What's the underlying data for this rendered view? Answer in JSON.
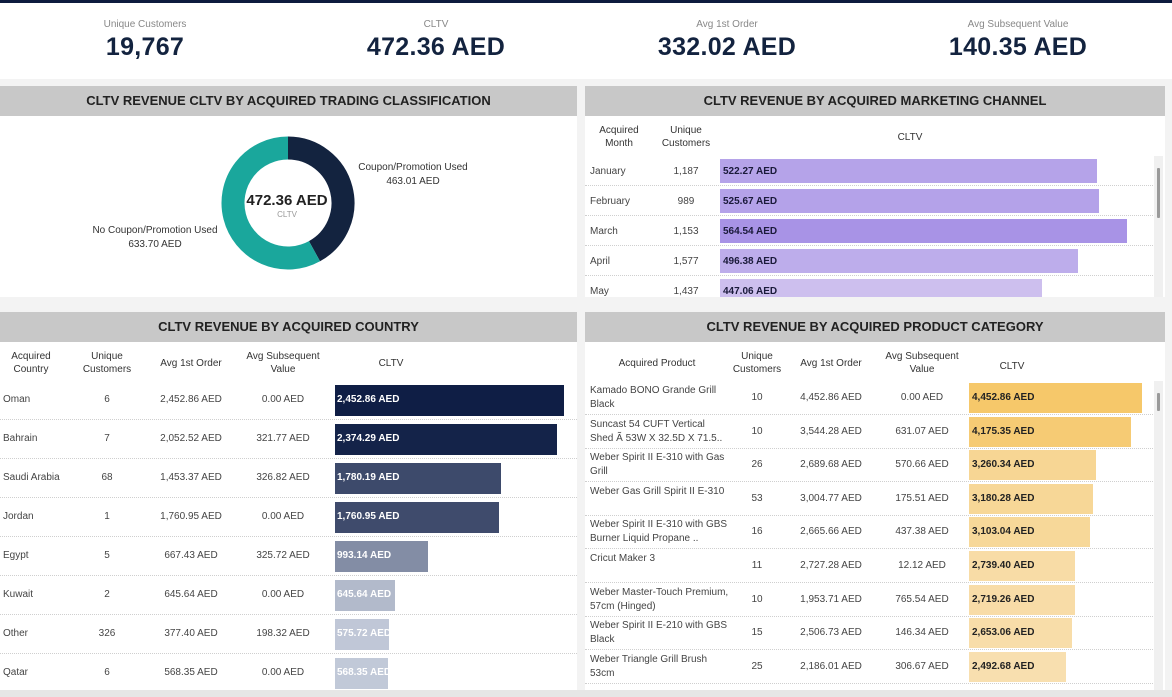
{
  "kpis": [
    {
      "label": "Unique Customers",
      "value": "19,767"
    },
    {
      "label": "CLTV",
      "value": "472.36 AED"
    },
    {
      "label": "Avg 1st Order",
      "value": "332.02 AED"
    },
    {
      "label": "Avg Subsequent Value",
      "value": "140.35 AED"
    }
  ],
  "trading": {
    "title": "CLTV REVENUE CLTV BY ACQUIRED TRADING CLASSIFICATION",
    "center_value": "472.36 AED",
    "center_label": "CLTV",
    "slices": [
      {
        "name": "Coupon/Promotion Used",
        "value": "463.01 AED",
        "share": 0.42,
        "color": "#13233f"
      },
      {
        "name": "No Coupon/Promotion Used",
        "value": "633.70 AED",
        "share": 0.58,
        "color": "#1aa79c"
      }
    ]
  },
  "marketing": {
    "title": "CLTV REVENUE BY ACQUIRED MARKETING CHANNEL",
    "headers": {
      "month": "Acquired Month",
      "customers": "Unique Customers",
      "cltv": "CLTV"
    },
    "max": 564.54,
    "rows": [
      {
        "month": "January",
        "customers": "1,187",
        "cltv": 522.27,
        "label": "522.27 AED"
      },
      {
        "month": "February",
        "customers": "989",
        "cltv": 525.67,
        "label": "525.67 AED"
      },
      {
        "month": "March",
        "customers": "1,153",
        "cltv": 564.54,
        "label": "564.54 AED"
      },
      {
        "month": "April",
        "customers": "1,577",
        "cltv": 496.38,
        "label": "496.38 AED"
      },
      {
        "month": "May",
        "customers": "1,437",
        "cltv": 447.06,
        "label": "447.06 AED"
      }
    ]
  },
  "country": {
    "title": "CLTV REVENUE BY ACQUIRED COUNTRY",
    "headers": {
      "country": "Acquired Country",
      "customers": "Unique Customers",
      "first": "Avg 1st Order",
      "subsequent": "Avg Subsequent Value",
      "cltv": "CLTV"
    },
    "max": 2452.86,
    "rows": [
      {
        "country": "Oman",
        "customers": "6",
        "first": "2,452.86 AED",
        "subsequent": "0.00 AED",
        "cltv": 2452.86,
        "label": "2,452.86 AED"
      },
      {
        "country": "Bahrain",
        "customers": "7",
        "first": "2,052.52 AED",
        "subsequent": "321.77 AED",
        "cltv": 2374.29,
        "label": "2,374.29 AED"
      },
      {
        "country": "Saudi Arabia",
        "customers": "68",
        "first": "1,453.37 AED",
        "subsequent": "326.82 AED",
        "cltv": 1780.19,
        "label": "1,780.19 AED"
      },
      {
        "country": "Jordan",
        "customers": "1",
        "first": "1,760.95 AED",
        "subsequent": "0.00 AED",
        "cltv": 1760.95,
        "label": "1,760.95 AED"
      },
      {
        "country": "Egypt",
        "customers": "5",
        "first": "667.43 AED",
        "subsequent": "325.72 AED",
        "cltv": 993.14,
        "label": "993.14 AED"
      },
      {
        "country": "Kuwait",
        "customers": "2",
        "first": "645.64 AED",
        "subsequent": "0.00 AED",
        "cltv": 645.64,
        "label": "645.64 AED"
      },
      {
        "country": "Other",
        "customers": "326",
        "first": "377.40 AED",
        "subsequent": "198.32 AED",
        "cltv": 575.72,
        "label": "575.72 AED"
      },
      {
        "country": "Qatar",
        "customers": "6",
        "first": "568.35 AED",
        "subsequent": "0.00 AED",
        "cltv": 568.35,
        "label": "568.35 AED"
      }
    ]
  },
  "product": {
    "title": "CLTV REVENUE BY ACQUIRED PRODUCT CATEGORY",
    "headers": {
      "product": "Acquired Product",
      "customers": "Unique Customers",
      "first": "Avg 1st Order",
      "subsequent": "Avg Subsequent Value",
      "cltv": "CLTV"
    },
    "max": 4452.86,
    "rows": [
      {
        "product": "Kamado BONO Grande Grill Black",
        "customers": "10",
        "first": "4,452.86 AED",
        "subsequent": "0.00 AED",
        "cltv": 4452.86,
        "label": "4,452.86 AED"
      },
      {
        "product": "Suncast 54 CUFT Vertical Shed Ã 53W X 32.5D X 71.5..",
        "customers": "10",
        "first": "3,544.28 AED",
        "subsequent": "631.07 AED",
        "cltv": 4175.35,
        "label": "4,175.35 AED"
      },
      {
        "product": "Weber Spirit II E-310 with Gas Grill",
        "customers": "26",
        "first": "2,689.68 AED",
        "subsequent": "570.66 AED",
        "cltv": 3260.34,
        "label": "3,260.34 AED"
      },
      {
        "product": "Weber Gas Grill Spirit II E-310",
        "customers": "53",
        "first": "3,004.77 AED",
        "subsequent": "175.51 AED",
        "cltv": 3180.28,
        "label": "3,180.28 AED"
      },
      {
        "product": "Weber Spirit II E-310 with GBS Burner Liquid Propane ..",
        "customers": "16",
        "first": "2,665.66 AED",
        "subsequent": "437.38 AED",
        "cltv": 3103.04,
        "label": "3,103.04 AED"
      },
      {
        "product": "Cricut Maker 3",
        "customers": "11",
        "first": "2,727.28 AED",
        "subsequent": "12.12 AED",
        "cltv": 2739.4,
        "label": "2,739.40 AED"
      },
      {
        "product": "Weber Master-Touch Premium, 57cm (Hinged)",
        "customers": "10",
        "first": "1,953.71 AED",
        "subsequent": "765.54 AED",
        "cltv": 2719.26,
        "label": "2,719.26 AED"
      },
      {
        "product": "Weber Spirit II E-210 with GBS Black",
        "customers": "15",
        "first": "2,506.73 AED",
        "subsequent": "146.34 AED",
        "cltv": 2653.06,
        "label": "2,653.06 AED"
      },
      {
        "product": "Weber Triangle Grill Brush 53cm",
        "customers": "25",
        "first": "2,186.01 AED",
        "subsequent": "306.67 AED",
        "cltv": 2492.68,
        "label": "2,492.68 AED"
      }
    ]
  }
}
